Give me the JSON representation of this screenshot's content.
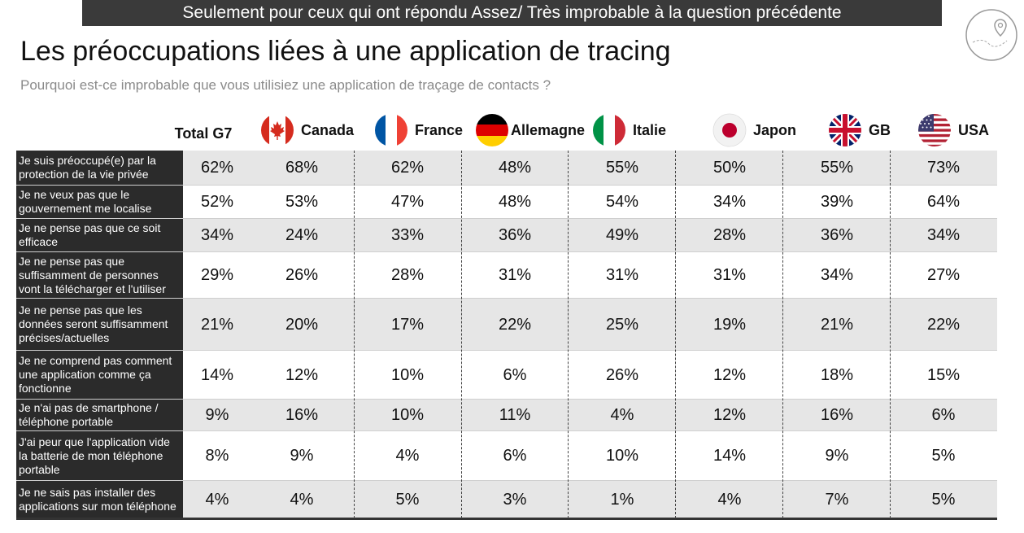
{
  "banner": "Seulement pour ceux qui ont répondu Assez/ Très improbable à la question précédente",
  "chart_data": {
    "type": "table",
    "title": "Les préoccupations liées à une application de tracing",
    "subtitle": "Pourquoi est-ce improbable que vous utilisiez une application de traçage de contacts ?",
    "columns": [
      "Total G7",
      "Canada",
      "France",
      "Allemagne",
      "Italie",
      "Japon",
      "GB",
      "USA"
    ],
    "rows": [
      {
        "label": "Je suis préoccupé(e) par la protection de la vie privée",
        "values": [
          "62%",
          "68%",
          "62%",
          "48%",
          "55%",
          "50%",
          "55%",
          "73%"
        ]
      },
      {
        "label": "Je ne veux pas que le gouvernement me localise",
        "values": [
          "52%",
          "53%",
          "47%",
          "48%",
          "54%",
          "34%",
          "39%",
          "64%"
        ]
      },
      {
        "label": "Je ne pense pas que ce soit efficace",
        "values": [
          "34%",
          "24%",
          "33%",
          "36%",
          "49%",
          "28%",
          "36%",
          "34%"
        ]
      },
      {
        "label": "Je ne pense pas que suffisamment de personnes vont la télécharger et l'utiliser",
        "values": [
          "29%",
          "26%",
          "28%",
          "31%",
          "31%",
          "31%",
          "34%",
          "27%"
        ]
      },
      {
        "label": "Je ne pense pas que les données seront suffisamment précises/actuelles",
        "values": [
          "21%",
          "20%",
          "17%",
          "22%",
          "25%",
          "19%",
          "21%",
          "22%"
        ]
      },
      {
        "label": "Je ne comprend pas comment une application comme ça fonctionne",
        "values": [
          "14%",
          "12%",
          "10%",
          "6%",
          "26%",
          "12%",
          "18%",
          "15%"
        ]
      },
      {
        "label": "Je n'ai pas de smartphone / téléphone portable",
        "values": [
          "9%",
          "16%",
          "10%",
          "11%",
          "4%",
          "12%",
          "16%",
          "6%"
        ]
      },
      {
        "label": "J'ai peur que l'application vide la batterie de mon téléphone portable",
        "values": [
          "8%",
          "9%",
          "4%",
          "6%",
          "10%",
          "14%",
          "9%",
          "5%"
        ]
      },
      {
        "label": "Je ne sais pas installer des applications sur mon téléphone",
        "values": [
          "4%",
          "4%",
          "5%",
          "3%",
          "1%",
          "4%",
          "7%",
          "5%"
        ]
      }
    ],
    "shaded_rows": [
      0,
      2,
      4,
      6,
      8
    ],
    "colors": {
      "label_bg": "#2b2b2b",
      "shade": "#e6e6e6",
      "banner_bg": "#3a3a3a"
    }
  },
  "flags": [
    "canada-flag-icon",
    "france-flag-icon",
    "germany-flag-icon",
    "italy-flag-icon",
    "japan-flag-icon",
    "uk-flag-icon",
    "usa-flag-icon"
  ]
}
